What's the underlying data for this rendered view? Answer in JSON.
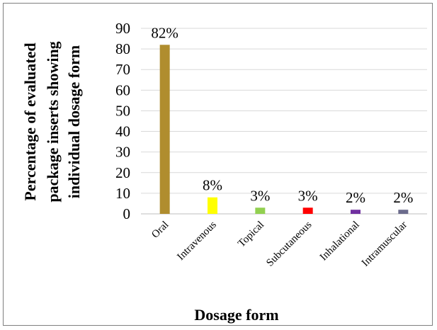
{
  "chart_data": {
    "type": "bar",
    "categories": [
      "Oral",
      "Intravenous",
      "Topical",
      "Subcutaneous",
      "Inhalational",
      "Intramuscular"
    ],
    "values": [
      82,
      8,
      3,
      3,
      2,
      2
    ],
    "data_labels": [
      "82%",
      "8%",
      "3%",
      "3%",
      "2%",
      "2%"
    ],
    "colors": [
      "#b08d2e",
      "#ffff00",
      "#92d050",
      "#ff0000",
      "#7030a0",
      "#6b6b8c"
    ],
    "title": "",
    "xlabel": "Dosage form",
    "ylabel_lines": [
      "Percentage  of evaluated",
      "package inserts showing",
      "individual dosage form"
    ],
    "ylim": [
      0,
      90
    ],
    "yticks": [
      0,
      10,
      20,
      30,
      40,
      50,
      60,
      70,
      80,
      90
    ],
    "grid": true,
    "legend": "none"
  }
}
